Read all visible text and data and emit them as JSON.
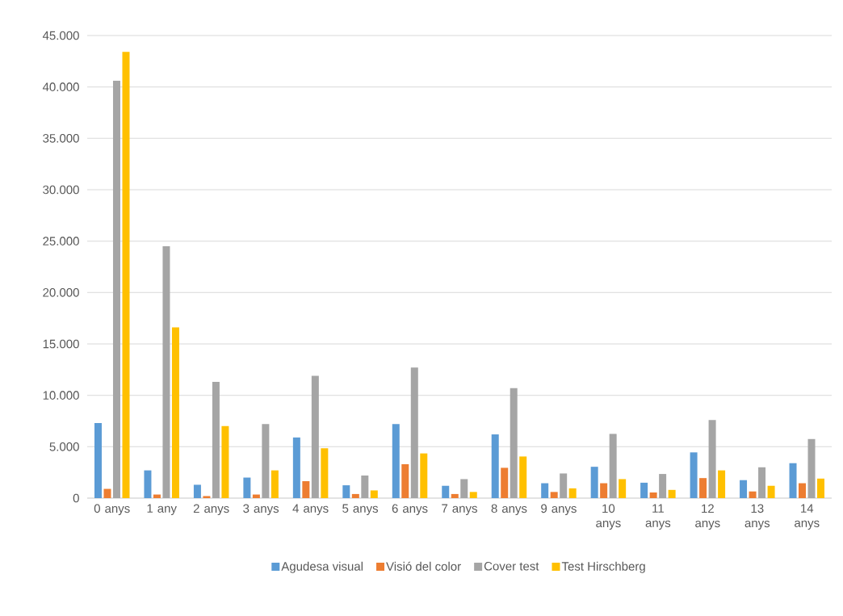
{
  "chart_data": {
    "type": "bar",
    "categories": [
      "0 anys",
      "1 any",
      "2 anys",
      "3 anys",
      "4 anys",
      "5 anys",
      "6 anys",
      "7 anys",
      "8 anys",
      "9 anys",
      "10 anys",
      "11 anys",
      "12 anys",
      "13 anys",
      "14 anys"
    ],
    "series": [
      {
        "name": "Agudesa visual",
        "color": "#5b9bd5",
        "values": [
          7300,
          2700,
          1300,
          2000,
          5900,
          1250,
          7200,
          1200,
          6200,
          1450,
          3050,
          1500,
          4450,
          1750,
          3400
        ]
      },
      {
        "name": "Visió del color",
        "color": "#ed7d31",
        "values": [
          900,
          350,
          200,
          350,
          1650,
          400,
          3300,
          400,
          2950,
          600,
          1450,
          550,
          1950,
          650,
          1450
        ]
      },
      {
        "name": "Cover test",
        "color": "#a5a5a5",
        "values": [
          40600,
          24500,
          11300,
          7200,
          11900,
          2200,
          12700,
          1850,
          10700,
          2400,
          6250,
          2350,
          7600,
          3000,
          5750
        ]
      },
      {
        "name": "Test Hirschberg",
        "color": "#ffc000",
        "values": [
          43400,
          16600,
          7000,
          2700,
          4850,
          750,
          4350,
          600,
          4050,
          950,
          1850,
          800,
          2700,
          1200,
          1900
        ]
      }
    ],
    "ylim": [
      0,
      45000
    ],
    "yticks": [
      0,
      {
        "value": 5000,
        "label": "5.000"
      },
      {
        "value": 10000,
        "label": "10.000"
      },
      {
        "value": 15000,
        "label": "15.000"
      },
      {
        "value": 20000,
        "label": "20.000"
      },
      {
        "value": 25000,
        "label": "25.000"
      },
      {
        "value": 30000,
        "label": "30.000"
      },
      {
        "value": 35000,
        "label": "35.000"
      },
      {
        "value": 40000,
        "label": "40.000"
      },
      {
        "value": 45000,
        "label": "45.000"
      }
    ],
    "grid": "y",
    "legend": "bottom"
  }
}
